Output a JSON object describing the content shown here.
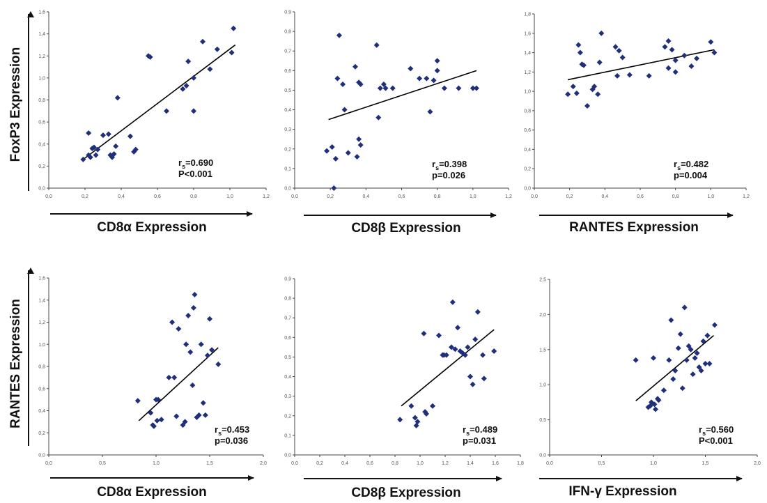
{
  "figure": {
    "row_labels": [
      "FoxP3 Expression",
      "RANTES Expression"
    ]
  },
  "chart_data": [
    {
      "type": "scatter",
      "xlabel": "CD8α Expression",
      "ylabel": "FoxP3 Expression",
      "xlim": [
        0,
        1.2
      ],
      "ylim": [
        0,
        1.6
      ],
      "xticks": [
        "0,0",
        "0,2",
        "0,4",
        "0,6",
        "0,8",
        "1,0",
        "1,2"
      ],
      "yticks": [
        "0,0",
        "0,2",
        "0,4",
        "0,6",
        "0,8",
        "1,0",
        "1,2",
        "1,4",
        "1,6"
      ],
      "stat_label": "r",
      "stat_sub": "s",
      "r_value": "=0.690",
      "p_text": "P<0.001",
      "fit_line": {
        "x": [
          0.19,
          1.03
        ],
        "y": [
          0.26,
          1.3
        ]
      },
      "x": [
        0.19,
        0.22,
        0.22,
        0.23,
        0.24,
        0.25,
        0.26,
        0.27,
        0.3,
        0.33,
        0.34,
        0.35,
        0.36,
        0.37,
        0.38,
        0.45,
        0.47,
        0.48,
        0.55,
        0.56,
        0.65,
        0.74,
        0.76,
        0.77,
        0.8,
        0.8,
        0.85,
        0.89,
        0.93,
        1.01,
        1.02
      ],
      "y": [
        0.26,
        0.5,
        0.3,
        0.28,
        0.36,
        0.37,
        0.3,
        0.35,
        0.48,
        0.49,
        0.3,
        0.28,
        0.31,
        0.38,
        0.82,
        0.47,
        0.33,
        0.35,
        1.2,
        1.19,
        0.7,
        0.9,
        0.93,
        1.15,
        1.0,
        0.7,
        1.33,
        1.08,
        1.26,
        1.23,
        1.45
      ]
    },
    {
      "type": "scatter",
      "xlabel": "CD8β Expression",
      "ylabel": "",
      "xlim": [
        0,
        1.2
      ],
      "ylim": [
        0,
        0.9
      ],
      "xticks": [
        "0,0",
        "0,2",
        "0,4",
        "0,6",
        "0,8",
        "1,0",
        "1,2"
      ],
      "yticks": [
        "0,0",
        "0,1",
        "0,2",
        "0,3",
        "0,4",
        "0,5",
        "0,6",
        "0,7",
        "0,8",
        "0,9"
      ],
      "stat_label": "r",
      "stat_sub": "s",
      "r_value": "=0.398",
      "p_text": "p=0.026",
      "fit_line": {
        "x": [
          0.19,
          1.02
        ],
        "y": [
          0.35,
          0.6
        ]
      },
      "x": [
        0.18,
        0.21,
        0.22,
        0.23,
        0.24,
        0.25,
        0.27,
        0.28,
        0.3,
        0.34,
        0.35,
        0.36,
        0.36,
        0.37,
        0.37,
        0.46,
        0.47,
        0.48,
        0.5,
        0.51,
        0.55,
        0.65,
        0.7,
        0.74,
        0.76,
        0.78,
        0.8,
        0.8,
        0.84,
        0.92,
        1.0,
        1.02
      ],
      "y": [
        0.19,
        0.21,
        0.0,
        0.15,
        0.56,
        0.78,
        0.53,
        0.4,
        0.18,
        0.62,
        0.16,
        0.54,
        0.25,
        0.22,
        0.53,
        0.73,
        0.36,
        0.51,
        0.53,
        0.51,
        0.51,
        0.61,
        0.56,
        0.56,
        0.39,
        0.55,
        0.65,
        0.6,
        0.51,
        0.51,
        0.51,
        0.51
      ]
    },
    {
      "type": "scatter",
      "xlabel": "RANTES Expression",
      "ylabel": "",
      "xlim": [
        0,
        1.2
      ],
      "ylim": [
        0,
        1.8
      ],
      "xticks": [
        "0,0",
        "0,2",
        "0,4",
        "0,6",
        "0,8",
        "1,0",
        "1,2"
      ],
      "yticks": [
        "0,0",
        "0,2",
        "0,4",
        "0,6",
        "0,8",
        "1,0",
        "1,2",
        "1,4",
        "1,6",
        "1,8"
      ],
      "stat_label": "r",
      "stat_sub": "s",
      "r_value": "=0.482",
      "p_text": "p=0.004",
      "fit_line": {
        "x": [
          0.19,
          1.02
        ],
        "y": [
          1.12,
          1.43
        ]
      },
      "x": [
        0.19,
        0.22,
        0.24,
        0.25,
        0.26,
        0.27,
        0.28,
        0.3,
        0.33,
        0.34,
        0.36,
        0.37,
        0.38,
        0.46,
        0.47,
        0.48,
        0.5,
        0.54,
        0.65,
        0.74,
        0.76,
        0.76,
        0.78,
        0.8,
        0.8,
        0.85,
        0.89,
        0.92,
        1.0,
        1.02
      ],
      "y": [
        0.97,
        1.05,
        0.98,
        1.48,
        1.4,
        1.28,
        1.27,
        0.85,
        1.02,
        1.05,
        0.97,
        1.3,
        1.6,
        1.46,
        1.16,
        1.42,
        1.35,
        1.17,
        1.16,
        1.46,
        1.52,
        1.24,
        1.43,
        1.32,
        1.2,
        1.37,
        1.26,
        1.34,
        1.51,
        1.4
      ]
    },
    {
      "type": "scatter",
      "xlabel": "CD8α Expression",
      "ylabel": "RANTES Expression",
      "xlim": [
        0,
        2.0
      ],
      "ylim": [
        0,
        1.6
      ],
      "xticks": [
        "0,0",
        "0,5",
        "1,0",
        "1,5",
        "2,0"
      ],
      "yticks": [
        "0,0",
        "0,2",
        "0,4",
        "0,6",
        "0,8",
        "1,0",
        "1,2",
        "1,4",
        "1,6"
      ],
      "stat_label": "r",
      "stat_sub": "s",
      "r_value": "=0.453",
      "p_text": "p=0.036",
      "fit_line": {
        "x": [
          0.84,
          1.58
        ],
        "y": [
          0.31,
          0.97
        ]
      },
      "x": [
        0.83,
        0.95,
        0.97,
        0.98,
        1.0,
        1.01,
        1.02,
        1.05,
        1.12,
        1.15,
        1.17,
        1.19,
        1.21,
        1.25,
        1.27,
        1.28,
        1.3,
        1.32,
        1.34,
        1.35,
        1.36,
        1.38,
        1.4,
        1.42,
        1.44,
        1.46,
        1.48,
        1.5,
        1.52,
        1.58
      ],
      "y": [
        0.49,
        0.38,
        0.27,
        0.26,
        0.5,
        0.31,
        0.5,
        0.32,
        0.7,
        1.2,
        0.7,
        0.35,
        1.14,
        0.27,
        0.3,
        1.0,
        1.26,
        0.93,
        0.63,
        1.33,
        1.45,
        0.34,
        0.36,
        1.0,
        0.47,
        0.36,
        0.9,
        1.23,
        0.95,
        0.82
      ]
    },
    {
      "type": "scatter",
      "xlabel": "CD8β Expression",
      "ylabel": "",
      "xlim": [
        0,
        1.8
      ],
      "ylim": [
        0,
        0.9
      ],
      "xticks": [
        "0,0",
        "0,2",
        "0,4",
        "0,6",
        "0,8",
        "1,0",
        "1,2",
        "1,4",
        "1,6",
        "1,8"
      ],
      "yticks": [
        "0,0",
        "0,1",
        "0,2",
        "0,3",
        "0,4",
        "0,5",
        "0,6",
        "0,7",
        "0,8",
        "0,9"
      ],
      "stat_label": "r",
      "stat_sub": "s",
      "r_value": "=0.489",
      "p_text": "p=0.031",
      "fit_line": {
        "x": [
          0.85,
          1.59
        ],
        "y": [
          0.25,
          0.64
        ]
      },
      "x": [
        0.84,
        0.93,
        0.96,
        0.97,
        0.98,
        1.03,
        1.04,
        1.05,
        1.1,
        1.15,
        1.18,
        1.19,
        1.21,
        1.25,
        1.26,
        1.28,
        1.3,
        1.32,
        1.34,
        1.36,
        1.38,
        1.4,
        1.42,
        1.44,
        1.46,
        1.5,
        1.51,
        1.59
      ],
      "y": [
        0.18,
        0.25,
        0.19,
        0.15,
        0.17,
        0.62,
        0.22,
        0.21,
        0.25,
        0.61,
        0.51,
        0.51,
        0.51,
        0.55,
        0.78,
        0.54,
        0.65,
        0.53,
        0.52,
        0.51,
        0.55,
        0.4,
        0.36,
        0.59,
        0.73,
        0.51,
        0.39,
        0.53
      ]
    },
    {
      "type": "scatter",
      "xlabel": "IFN-γ Expression",
      "ylabel": "",
      "xlim": [
        0,
        2.0
      ],
      "ylim": [
        0,
        2.5
      ],
      "xticks": [
        "0,0",
        "0,5",
        "1,0",
        "1,5",
        "2,0"
      ],
      "yticks": [
        "0,0",
        "0,5",
        "1,0",
        "1,5",
        "2,0",
        "2,5"
      ],
      "stat_label": "r",
      "stat_sub": "s",
      "r_value": "=0.560",
      "p_text": "P<0.001",
      "fit_line": {
        "x": [
          0.83,
          1.58
        ],
        "y": [
          0.77,
          1.7
        ]
      },
      "x": [
        0.83,
        0.95,
        0.97,
        0.98,
        1.0,
        1.01,
        1.02,
        1.04,
        1.05,
        1.1,
        1.15,
        1.17,
        1.19,
        1.21,
        1.24,
        1.26,
        1.28,
        1.3,
        1.32,
        1.34,
        1.36,
        1.38,
        1.4,
        1.42,
        1.44,
        1.46,
        1.48,
        1.5,
        1.52,
        1.54,
        1.59
      ],
      "y": [
        1.35,
        0.68,
        0.7,
        0.75,
        1.38,
        0.72,
        0.65,
        0.8,
        0.78,
        0.92,
        1.35,
        1.92,
        1.08,
        1.2,
        1.52,
        1.72,
        0.95,
        2.1,
        1.35,
        1.55,
        1.5,
        1.15,
        1.38,
        1.45,
        1.25,
        1.2,
        1.62,
        1.3,
        1.7,
        1.3,
        1.85
      ]
    }
  ]
}
